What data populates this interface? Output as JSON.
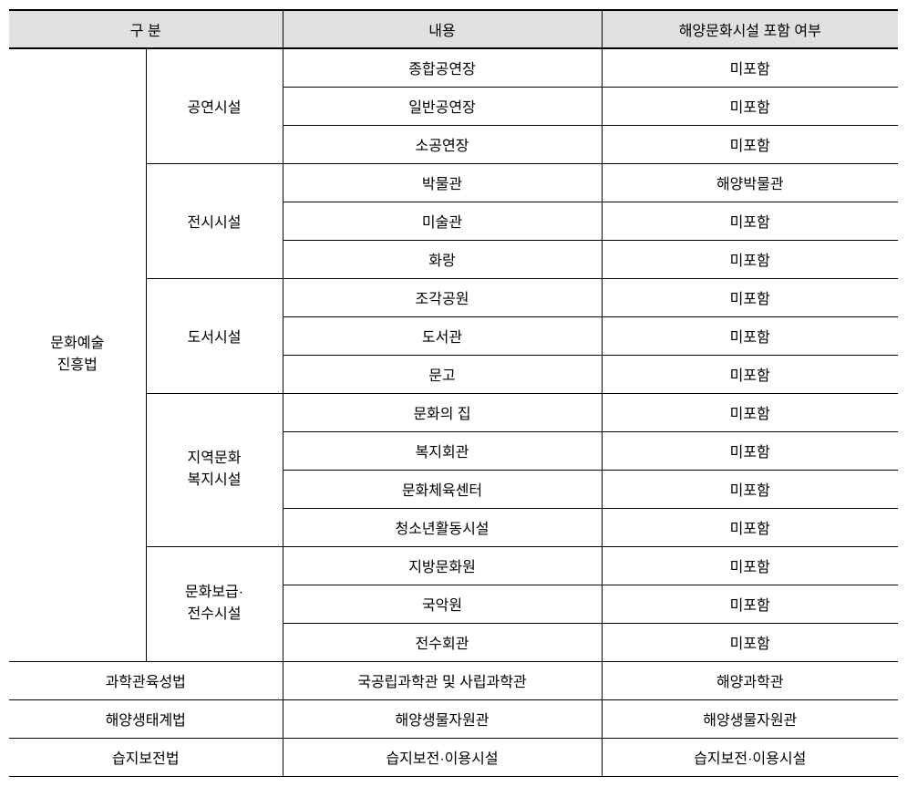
{
  "headers": {
    "category": "구 분",
    "content": "내용",
    "inclusion": "해양문화시설 포함 여부"
  },
  "mainCategory1": {
    "name_line1": "문화예술",
    "name_line2": "진흥법"
  },
  "subCategories": [
    {
      "name": "공연시설",
      "rows": [
        {
          "content": "종합공연장",
          "inclusion": "미포함"
        },
        {
          "content": "일반공연장",
          "inclusion": "미포함"
        },
        {
          "content": "소공연장",
          "inclusion": "미포함"
        }
      ]
    },
    {
      "name": "전시시설",
      "rows": [
        {
          "content": "박물관",
          "inclusion": "해양박물관"
        },
        {
          "content": "미술관",
          "inclusion": "미포함"
        },
        {
          "content": "화랑",
          "inclusion": "미포함"
        }
      ]
    },
    {
      "name": "도서시설",
      "rows": [
        {
          "content": "조각공원",
          "inclusion": "미포함"
        },
        {
          "content": "도서관",
          "inclusion": "미포함"
        },
        {
          "content": "문고",
          "inclusion": "미포함"
        }
      ]
    },
    {
      "name_line1": "지역문화",
      "name_line2": "복지시설",
      "rows": [
        {
          "content": "문화의 집",
          "inclusion": "미포함"
        },
        {
          "content": "복지회관",
          "inclusion": "미포함"
        },
        {
          "content": "문화체육센터",
          "inclusion": "미포함"
        },
        {
          "content": "청소년활동시설",
          "inclusion": "미포함"
        }
      ]
    },
    {
      "name_line1": "문화보급·",
      "name_line2": "전수시설",
      "rows": [
        {
          "content": "지방문화원",
          "inclusion": "미포함"
        },
        {
          "content": "국악원",
          "inclusion": "미포함"
        },
        {
          "content": "전수회관",
          "inclusion": "미포함"
        }
      ]
    }
  ],
  "simpleRows": [
    {
      "category": "과학관육성법",
      "content": "국공립과학관 및 사립과학관",
      "inclusion": "해양과학관"
    },
    {
      "category": "해양생태계법",
      "content": "해양생물자원관",
      "inclusion": "해양생물자원관"
    },
    {
      "category": "습지보전법",
      "content": "습지보전·이용시설",
      "inclusion": "습지보전·이용시설"
    }
  ]
}
